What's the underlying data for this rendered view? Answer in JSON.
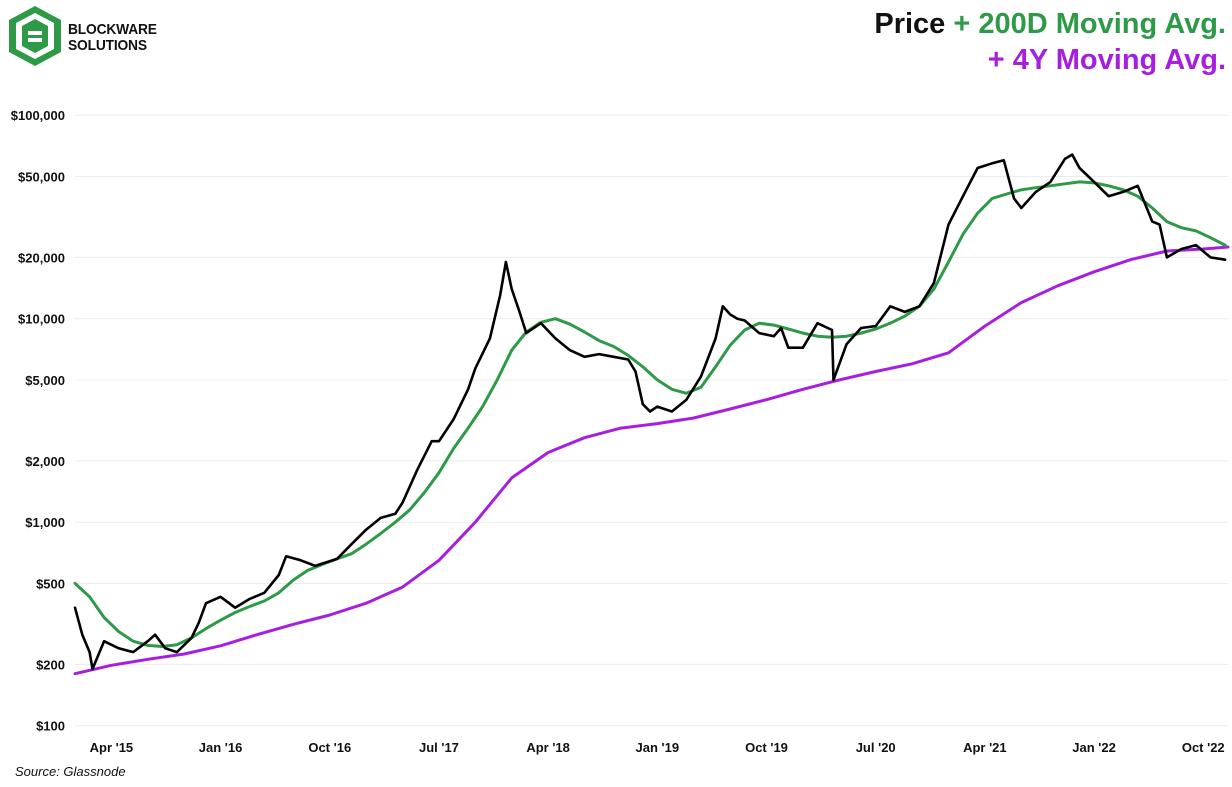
{
  "logo": {
    "line1": "BLOCKWARE",
    "line2": "SOLUTIONS",
    "icon": "blockware-logo-icon",
    "color": "#2e9a48"
  },
  "title": {
    "part1": "Price",
    "part2": "+ 200D Moving Avg.",
    "part3": "+ 4Y Moving Avg."
  },
  "source": "Source: Glassnode",
  "chart_data": {
    "type": "line",
    "title": "Price + 200D Moving Avg. + 4Y Moving Avg.",
    "yscale": "log",
    "ylim": [
      90,
      130000
    ],
    "xlim": [
      2015.0,
      2022.92
    ],
    "y_ticks": [
      {
        "value": 100,
        "label": "$100"
      },
      {
        "value": 200,
        "label": "$200"
      },
      {
        "value": 500,
        "label": "$500"
      },
      {
        "value": 1000,
        "label": "$1,000"
      },
      {
        "value": 2000,
        "label": "$2,000"
      },
      {
        "value": 5000,
        "label": "$5,000"
      },
      {
        "value": 10000,
        "label": "$10,000"
      },
      {
        "value": 20000,
        "label": "$20,000"
      },
      {
        "value": 50000,
        "label": "$50,000"
      },
      {
        "value": 100000,
        "label": "$100,000"
      }
    ],
    "x_ticks": [
      {
        "value": 2015.25,
        "label": "Apr '15"
      },
      {
        "value": 2016.0,
        "label": "Jan '16"
      },
      {
        "value": 2016.75,
        "label": "Oct '16"
      },
      {
        "value": 2017.5,
        "label": "Jul '17"
      },
      {
        "value": 2018.25,
        "label": "Apr '18"
      },
      {
        "value": 2019.0,
        "label": "Jan '19"
      },
      {
        "value": 2019.75,
        "label": "Oct '19"
      },
      {
        "value": 2020.5,
        "label": "Jul '20"
      },
      {
        "value": 2021.25,
        "label": "Apr '21"
      },
      {
        "value": 2022.0,
        "label": "Jan '22"
      },
      {
        "value": 2022.75,
        "label": "Oct '22"
      }
    ],
    "series": [
      {
        "name": "Price",
        "color": "#000000",
        "x": [
          2015.0,
          2015.05,
          2015.1,
          2015.12,
          2015.2,
          2015.3,
          2015.4,
          2015.5,
          2015.55,
          2015.62,
          2015.7,
          2015.8,
          2015.85,
          2015.9,
          2016.0,
          2016.1,
          2016.2,
          2016.3,
          2016.4,
          2016.45,
          2016.55,
          2016.65,
          2016.8,
          2016.9,
          2017.0,
          2017.1,
          2017.2,
          2017.25,
          2017.35,
          2017.45,
          2017.5,
          2017.6,
          2017.7,
          2017.75,
          2017.85,
          2017.92,
          2017.96,
          2018.0,
          2018.05,
          2018.1,
          2018.2,
          2018.3,
          2018.4,
          2018.5,
          2018.6,
          2018.7,
          2018.8,
          2018.85,
          2018.9,
          2018.95,
          2019.0,
          2019.1,
          2019.2,
          2019.3,
          2019.4,
          2019.45,
          2019.5,
          2019.55,
          2019.6,
          2019.7,
          2019.8,
          2019.85,
          2019.9,
          2020.0,
          2020.1,
          2020.2,
          2020.21,
          2020.3,
          2020.4,
          2020.5,
          2020.6,
          2020.7,
          2020.8,
          2020.9,
          2021.0,
          2021.1,
          2021.2,
          2021.3,
          2021.38,
          2021.45,
          2021.5,
          2021.6,
          2021.7,
          2021.8,
          2021.85,
          2021.9,
          2022.0,
          2022.1,
          2022.2,
          2022.3,
          2022.4,
          2022.45,
          2022.5,
          2022.6,
          2022.7,
          2022.8,
          2022.9
        ],
        "values": [
          380,
          280,
          230,
          190,
          260,
          240,
          230,
          260,
          280,
          240,
          230,
          270,
          320,
          400,
          430,
          380,
          420,
          450,
          550,
          680,
          650,
          610,
          660,
          780,
          920,
          1050,
          1100,
          1250,
          1800,
          2500,
          2500,
          3200,
          4500,
          5700,
          8000,
          13000,
          19000,
          14000,
          11000,
          8500,
          9500,
          8000,
          7000,
          6500,
          6700,
          6500,
          6300,
          5500,
          3800,
          3500,
          3700,
          3500,
          4000,
          5200,
          8000,
          11500,
          10500,
          10000,
          9800,
          8500,
          8200,
          9000,
          7200,
          7200,
          9500,
          8800,
          5000,
          7500,
          9000,
          9200,
          11500,
          10800,
          11500,
          15000,
          29000,
          40000,
          55000,
          58000,
          60000,
          39000,
          35000,
          42000,
          47000,
          61000,
          64000,
          55000,
          47000,
          40000,
          42000,
          45000,
          30000,
          29000,
          20000,
          22000,
          23000,
          20000,
          19500
        ]
      },
      {
        "name": "200D Moving Avg.",
        "color": "#2e9a48",
        "x": [
          2015.0,
          2015.1,
          2015.2,
          2015.3,
          2015.4,
          2015.5,
          2015.6,
          2015.7,
          2015.8,
          2015.9,
          2016.0,
          2016.1,
          2016.2,
          2016.3,
          2016.4,
          2016.5,
          2016.6,
          2016.7,
          2016.8,
          2016.9,
          2017.0,
          2017.1,
          2017.2,
          2017.3,
          2017.4,
          2017.5,
          2017.6,
          2017.7,
          2017.8,
          2017.9,
          2018.0,
          2018.1,
          2018.2,
          2018.3,
          2018.4,
          2018.5,
          2018.6,
          2018.7,
          2018.8,
          2018.9,
          2019.0,
          2019.1,
          2019.2,
          2019.3,
          2019.4,
          2019.5,
          2019.6,
          2019.7,
          2019.8,
          2019.9,
          2020.0,
          2020.1,
          2020.2,
          2020.3,
          2020.4,
          2020.5,
          2020.6,
          2020.7,
          2020.8,
          2020.9,
          2021.0,
          2021.1,
          2021.2,
          2021.3,
          2021.4,
          2021.5,
          2021.6,
          2021.7,
          2021.8,
          2021.9,
          2022.0,
          2022.1,
          2022.2,
          2022.3,
          2022.4,
          2022.5,
          2022.6,
          2022.7,
          2022.8,
          2022.9
        ],
        "values": [
          500,
          430,
          340,
          290,
          260,
          248,
          245,
          250,
          270,
          300,
          330,
          360,
          385,
          410,
          450,
          520,
          580,
          620,
          660,
          700,
          780,
          880,
          1000,
          1150,
          1400,
          1750,
          2300,
          2900,
          3700,
          5000,
          7000,
          8600,
          9600,
          10000,
          9400,
          8600,
          7800,
          7300,
          6600,
          5800,
          5000,
          4500,
          4300,
          4600,
          5800,
          7400,
          8800,
          9500,
          9300,
          8900,
          8500,
          8200,
          8100,
          8200,
          8500,
          8900,
          9500,
          10300,
          11500,
          14000,
          19000,
          26000,
          33000,
          39000,
          41000,
          43000,
          44000,
          45000,
          46000,
          47000,
          46500,
          45000,
          43000,
          40000,
          35000,
          30000,
          28000,
          27000,
          25000,
          23000
        ],
        "line_color": "#2e9a48"
      },
      {
        "name": "4Y Moving Avg.",
        "color": "#a61fe0",
        "x": [
          2015.0,
          2015.25,
          2015.5,
          2015.75,
          2016.0,
          2016.25,
          2016.5,
          2016.75,
          2017.0,
          2017.25,
          2017.5,
          2017.75,
          2018.0,
          2018.25,
          2018.5,
          2018.75,
          2019.0,
          2019.25,
          2019.5,
          2019.75,
          2020.0,
          2020.25,
          2020.5,
          2020.75,
          2021.0,
          2021.25,
          2021.5,
          2021.75,
          2022.0,
          2022.25,
          2022.5,
          2022.75,
          2022.92
        ],
        "values": [
          180,
          198,
          212,
          225,
          247,
          280,
          315,
          350,
          400,
          480,
          650,
          1000,
          1650,
          2200,
          2600,
          2900,
          3050,
          3250,
          3600,
          4000,
          4500,
          5000,
          5500,
          6000,
          6800,
          9200,
          12000,
          14500,
          17000,
          19500,
          21500,
          22000,
          22500
        ]
      }
    ],
    "grid": "horizontal",
    "xlabel": "",
    "ylabel": ""
  }
}
